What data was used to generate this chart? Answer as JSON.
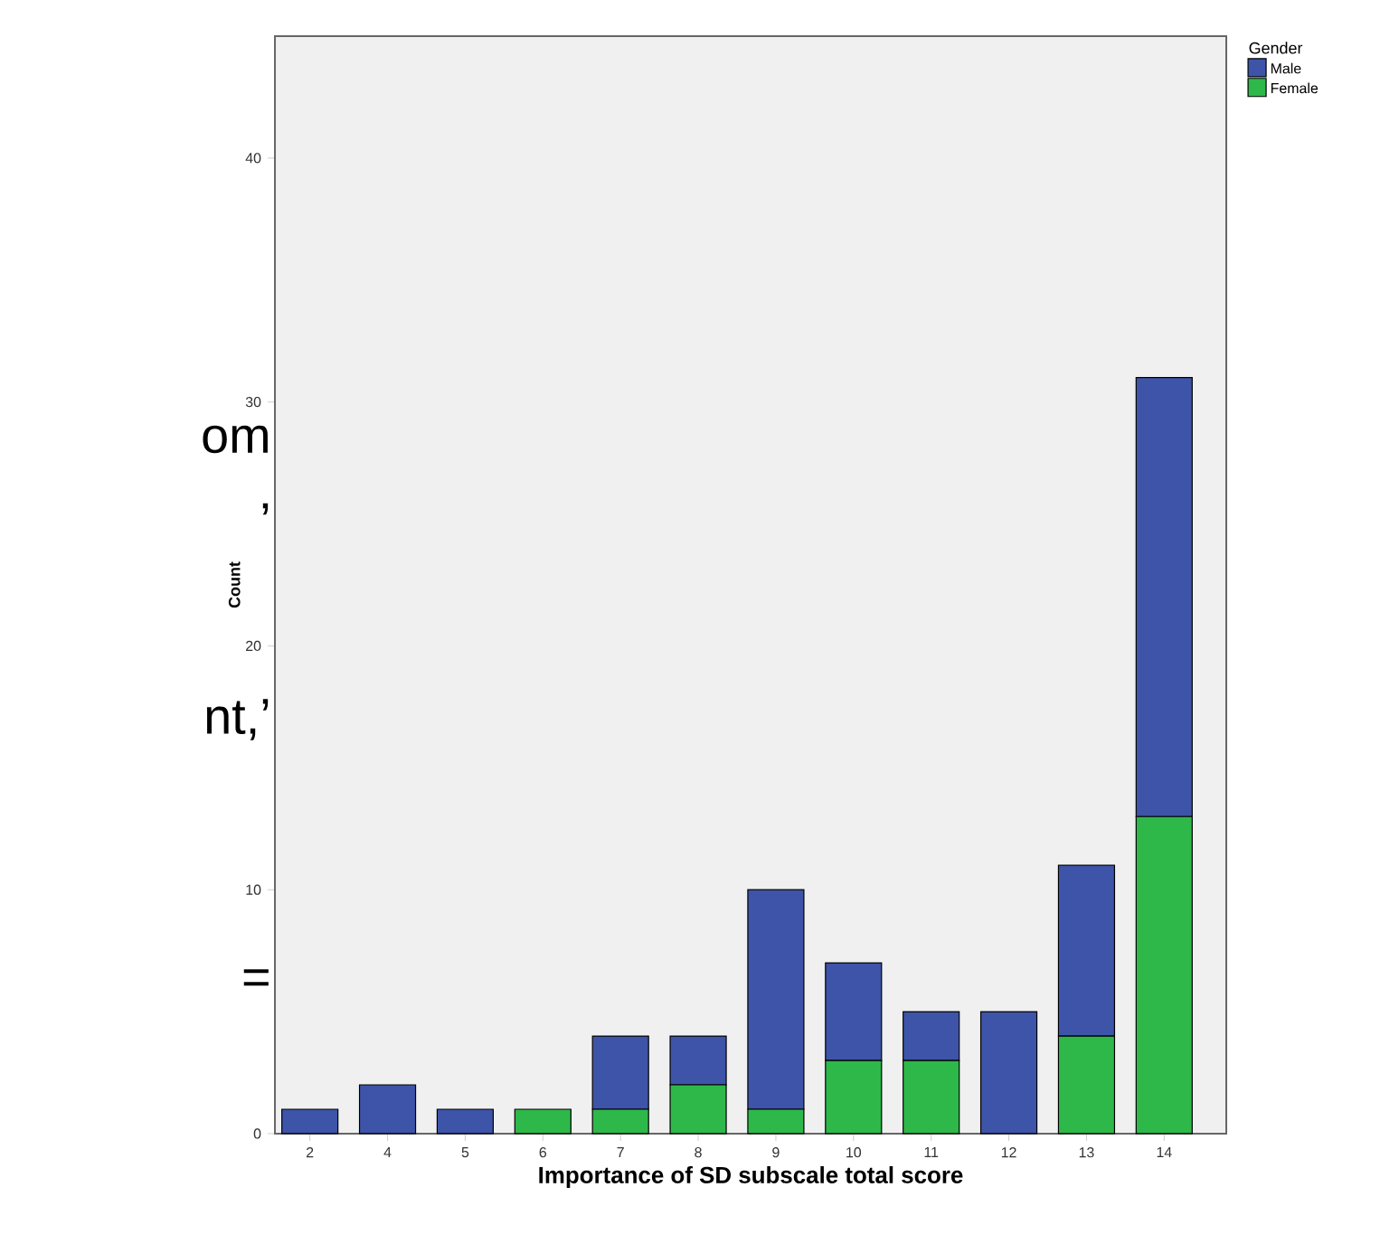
{
  "chart_data": {
    "type": "bar",
    "stacked": true,
    "xlabel": "Importance of SD subscale total score",
    "ylabel": "Count",
    "legend_title": "Gender",
    "legend": "top right",
    "categories": [
      "2",
      "4",
      "5",
      "6",
      "7",
      "8",
      "9",
      "10",
      "11",
      "12",
      "13",
      "14"
    ],
    "series": [
      {
        "name": "Female",
        "color": "#2eb84a",
        "values": [
          0,
          0,
          0,
          1,
          1,
          2,
          1,
          3,
          3,
          0,
          4,
          13
        ]
      },
      {
        "name": "Male",
        "color": "#3d54a8",
        "values": [
          1,
          2,
          1,
          0,
          3,
          2,
          9,
          4,
          2,
          5,
          7,
          18
        ]
      }
    ],
    "ylim": [
      0,
      45
    ],
    "yticks": [
      0,
      10,
      20,
      30,
      40
    ],
    "annotations": [
      "om",
      "’",
      "nt,’",
      "="
    ]
  }
}
